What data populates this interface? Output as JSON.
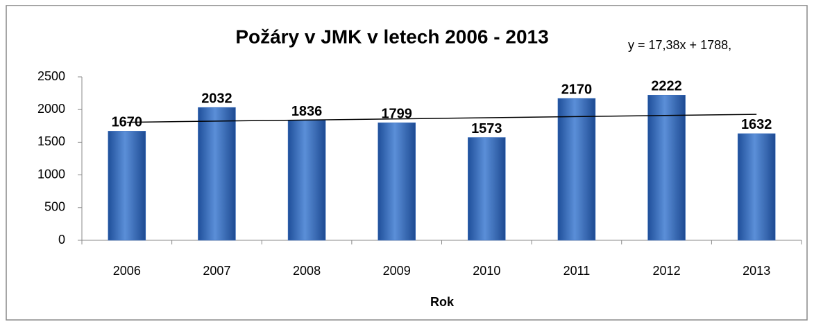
{
  "chart_data": {
    "type": "bar",
    "title": "Požáry v JMK v letech 2006 - 2013",
    "x_label": "Rok",
    "categories": [
      "2006",
      "2007",
      "2008",
      "2009",
      "2010",
      "2011",
      "2012",
      "2013"
    ],
    "values": [
      1670,
      2032,
      1836,
      1799,
      1573,
      2170,
      2222,
      1632
    ],
    "color": "#3a6fc0",
    "ylim": [
      0,
      2500
    ],
    "yticks": [
      0,
      500,
      1000,
      1500,
      2000,
      2500
    ],
    "grid": false,
    "trendline": {
      "slope": 17.38,
      "intercept": 1788,
      "label": "y = 17,38x + 1788,"
    }
  }
}
